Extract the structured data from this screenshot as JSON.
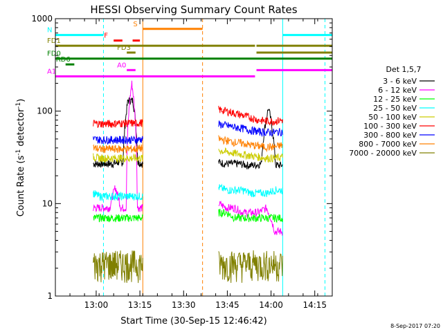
{
  "chart_data": {
    "type": "line",
    "title": "HESSI Observing Summary Count Rates",
    "xlabel": "Start Time (30-Sep-15 12:46:42)",
    "ylabel_main": "Count Rate (s",
    "ylabel_sup1": "-1",
    "ylabel_mid": " detector",
    "ylabel_sup2": "-1",
    "ylabel_end": ")",
    "y_scale": "log",
    "ylim": [
      1,
      1000
    ],
    "xlim_minutes_after_1246": [
      0,
      95
    ],
    "y_ticks": [
      {
        "value": 1000,
        "label": "1000"
      },
      {
        "value": 100,
        "label": "100"
      },
      {
        "value": 10,
        "label": "10"
      },
      {
        "value": 1,
        "label": "1"
      }
    ],
    "x_ticks": [
      {
        "minute": 14,
        "label": "13:00"
      },
      {
        "minute": 29,
        "label": "13:15"
      },
      {
        "minute": 44,
        "label": "13:30"
      },
      {
        "minute": 59,
        "label": "13:45"
      },
      {
        "minute": 74,
        "label": "14:00"
      },
      {
        "minute": 89,
        "label": "14:15"
      }
    ],
    "legend_title": "Det 1,5,7",
    "legend_placement": "right",
    "series": [
      {
        "name": "3 - 6 keV",
        "color": "#000000",
        "segments": [
          {
            "start": 13,
            "end": 30,
            "values": [
              27,
              27,
              27,
              27,
              27,
              28,
              28,
              130,
              130,
              28,
              27
            ]
          },
          {
            "start": 56,
            "end": 78,
            "values": [
              28,
              27,
              27,
              27,
              26,
              26,
              27,
              108,
              26,
              26
            ]
          }
        ]
      },
      {
        "name": "6 - 12 keV",
        "color": "#ff00ff",
        "segments": [
          {
            "start": 13,
            "end": 30,
            "values": [
              9,
              9,
              9,
              9,
              15,
              9,
              9,
              200,
              9,
              9
            ]
          },
          {
            "start": 56,
            "end": 78,
            "values": [
              10,
              9,
              9,
              8,
              8,
              8,
              9,
              5,
              5
            ]
          }
        ]
      },
      {
        "name": "12 - 25 keV",
        "color": "#00ff00",
        "segments": [
          {
            "start": 13,
            "end": 30,
            "values": [
              7,
              7,
              7,
              7,
              7,
              7,
              7,
              7,
              7
            ]
          },
          {
            "start": 56,
            "end": 78,
            "values": [
              8,
              8,
              7,
              7,
              7,
              7,
              7,
              7,
              7
            ]
          }
        ]
      },
      {
        "name": "25 - 50 keV",
        "color": "#00ffff",
        "segments": [
          {
            "start": 13,
            "end": 30,
            "values": [
              13,
              12,
              12,
              12,
              12,
              12,
              12,
              12,
              12
            ]
          },
          {
            "start": 56,
            "end": 78,
            "values": [
              15,
              14,
              14,
              14,
              13,
              13,
              13,
              14,
              14
            ]
          }
        ]
      },
      {
        "name": "50 - 100 keV",
        "color": "#cccc00",
        "segments": [
          {
            "start": 13,
            "end": 30,
            "values": [
              32,
              31,
              31,
              31,
              31,
              31,
              31,
              31,
              31
            ]
          },
          {
            "start": 56,
            "end": 78,
            "values": [
              38,
              36,
              35,
              34,
              33,
              32,
              31,
              31,
              32
            ]
          }
        ]
      },
      {
        "name": "100 - 300 keV",
        "color": "#ff0000",
        "segments": [
          {
            "start": 13,
            "end": 30,
            "values": [
              74,
              73,
              73,
              73,
              74,
              74,
              74,
              74,
              75
            ]
          },
          {
            "start": 56,
            "end": 78,
            "values": [
              104,
              100,
              95,
              90,
              85,
              80,
              78,
              78,
              80
            ]
          }
        ]
      },
      {
        "name": "300 - 800 keV",
        "color": "#0000ff",
        "segments": [
          {
            "start": 13,
            "end": 30,
            "values": [
              50,
              49,
              49,
              49,
              49,
              49,
              49,
              49,
              50
            ]
          },
          {
            "start": 56,
            "end": 78,
            "values": [
              72,
              70,
              67,
              65,
              62,
              60,
              59,
              59,
              60
            ]
          }
        ]
      },
      {
        "name": "800 - 7000 keV",
        "color": "#ff8000",
        "segments": [
          {
            "start": 13,
            "end": 30,
            "values": [
              40,
              39,
              39,
              39,
              39,
              39,
              39,
              39,
              40
            ]
          },
          {
            "start": 56,
            "end": 78,
            "values": [
              50,
              48,
              46,
              45,
              43,
              42,
              41,
              41,
              43
            ]
          }
        ]
      },
      {
        "name": "7000 - 20000 keV",
        "color": "#808000",
        "segments": [
          {
            "start": 13,
            "end": 30,
            "values": [
              2.5,
              2.5,
              2.5,
              2.5,
              2.5,
              2.5,
              2.5,
              2.5,
              2.5
            ]
          },
          {
            "start": 56,
            "end": 78,
            "values": [
              2.5,
              2.5,
              2.5,
              2.5,
              2.5,
              2.5,
              2.5,
              2.5,
              2.5
            ]
          }
        ]
      }
    ],
    "vertical_markers": [
      {
        "minute": 0,
        "color": "#00ffff",
        "style": "solid"
      },
      {
        "minute": 16.5,
        "color": "#00ffff",
        "style": "dashed"
      },
      {
        "minute": 30,
        "color": "#ff8000",
        "style": "solid"
      },
      {
        "minute": 50.5,
        "color": "#ff8000",
        "style": "dashed"
      },
      {
        "minute": 78,
        "color": "#00ffff",
        "style": "solid"
      },
      {
        "minute": 92.5,
        "color": "#00ffff",
        "style": "dashed"
      }
    ],
    "flag_bars": [
      {
        "label": "N",
        "color": "#00ffff",
        "y": 665,
        "ranges": [
          [
            0,
            16.5
          ],
          [
            78,
            95
          ]
        ]
      },
      {
        "label": "S",
        "color": "#ff8000",
        "y": 775,
        "ranges": [
          [
            30,
            50.5
          ]
        ]
      },
      {
        "label": "F",
        "color": "#ff0000",
        "y": 580,
        "ranges": [
          [
            20,
            23
          ],
          [
            26.5,
            29
          ]
        ]
      },
      {
        "label": "FD1",
        "color": "#808000",
        "y": 510,
        "ranges": [
          [
            0,
            68.5
          ],
          [
            69,
            95
          ]
        ]
      },
      {
        "label": "FD3",
        "color": "#808000",
        "y": 430,
        "ranges": [
          [
            24.5,
            27.5
          ],
          [
            69,
            95
          ]
        ]
      },
      {
        "label": "FD0",
        "color": "#008000",
        "y": 370,
        "ranges": [
          [
            0,
            95
          ]
        ]
      },
      {
        "label": "RD6",
        "color": "#008000",
        "y": 320,
        "ranges": [
          [
            3.5,
            6.5
          ]
        ]
      },
      {
        "label": "A0",
        "color": "#ff00ff",
        "y": 278,
        "ranges": [
          [
            24.5,
            27.5
          ],
          [
            69,
            95
          ]
        ]
      },
      {
        "label": "A1",
        "color": "#ff00ff",
        "y": 238,
        "ranges": [
          [
            0,
            68.5
          ]
        ]
      }
    ]
  },
  "footer": {
    "stamp": "8-Sep-2017 07:20"
  }
}
